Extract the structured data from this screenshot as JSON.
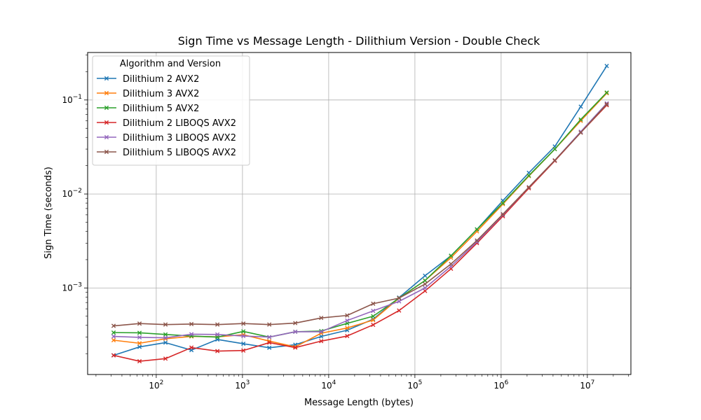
{
  "chart_data": {
    "type": "line",
    "title": "Sign Time vs Message Length - Dilithium Version - Double Check",
    "xlabel": "Message Length (bytes)",
    "ylabel": "Sign Time (seconds)",
    "xscale": "log",
    "yscale": "log",
    "xlim": [
      16,
      32000000
    ],
    "ylim": [
      0.00012,
      0.32
    ],
    "x_ticks": [
      {
        "value": 100,
        "base": "10",
        "exp": "2"
      },
      {
        "value": 1000,
        "base": "10",
        "exp": "3"
      },
      {
        "value": 10000,
        "base": "10",
        "exp": "4"
      },
      {
        "value": 100000,
        "base": "10",
        "exp": "5"
      },
      {
        "value": 1000000,
        "base": "10",
        "exp": "6"
      },
      {
        "value": 10000000,
        "base": "10",
        "exp": "7"
      }
    ],
    "y_ticks": [
      {
        "value": 0.001,
        "base": "10",
        "exp": "−3"
      },
      {
        "value": 0.01,
        "base": "10",
        "exp": "−2"
      },
      {
        "value": 0.1,
        "base": "10",
        "exp": "−1"
      }
    ],
    "grid": true,
    "marker": "x",
    "legend": {
      "title": "Algorithm and Version",
      "position": "top-left"
    },
    "x": [
      32,
      64,
      128,
      256,
      512,
      1024,
      2048,
      4096,
      8192,
      16384,
      32768,
      65536,
      131072,
      262144,
      524288,
      1048576,
      2097152,
      4194304,
      8388608,
      16777216
    ],
    "series": [
      {
        "name": "Dilithium 2 AVX2",
        "color": "#1f77b4",
        "values": [
          0.000192,
          0.000236,
          0.000262,
          0.000218,
          0.000283,
          0.000255,
          0.000231,
          0.000249,
          0.000305,
          0.000355,
          0.000465,
          0.00079,
          0.00135,
          0.0022,
          0.0042,
          0.0085,
          0.0168,
          0.032,
          0.085,
          0.23
        ]
      },
      {
        "name": "Dilithium 3 AVX2",
        "color": "#ff7f0e",
        "values": [
          0.000278,
          0.000258,
          0.000288,
          0.000305,
          0.000302,
          0.000318,
          0.000272,
          0.000236,
          0.00033,
          0.000375,
          0.000455,
          0.00078,
          0.0012,
          0.0021,
          0.004,
          0.0078,
          0.0155,
          0.03,
          0.06,
          0.118
        ]
      },
      {
        "name": "Dilithium 5 AVX2",
        "color": "#2ca02c",
        "values": [
          0.000335,
          0.000333,
          0.00032,
          0.000308,
          0.0003,
          0.000345,
          0.0003,
          0.000342,
          0.000348,
          0.00042,
          0.0005,
          0.00078,
          0.0012,
          0.0022,
          0.0042,
          0.008,
          0.0157,
          0.03,
          0.062,
          0.12
        ]
      },
      {
        "name": "Dilithium 2 LIBOQS AVX2",
        "color": "#d62728",
        "values": [
          0.000192,
          0.000166,
          0.000177,
          0.000232,
          0.000213,
          0.000216,
          0.000262,
          0.000232,
          0.000272,
          0.000308,
          0.000405,
          0.000575,
          0.00093,
          0.0016,
          0.003,
          0.0058,
          0.0115,
          0.0225,
          0.045,
          0.088
        ]
      },
      {
        "name": "Dilithium 3 LIBOQS AVX2",
        "color": "#9467bd",
        "values": [
          0.000305,
          0.000298,
          0.000295,
          0.000322,
          0.00032,
          0.000308,
          0.0003,
          0.000342,
          0.000342,
          0.00045,
          0.00057,
          0.00072,
          0.001,
          0.0017,
          0.0031,
          0.006,
          0.0118,
          0.0228,
          0.046,
          0.092
        ]
      },
      {
        "name": "Dilithium 5 LIBOQS AVX2",
        "color": "#8c564b",
        "values": [
          0.000395,
          0.000418,
          0.000408,
          0.000413,
          0.000408,
          0.000418,
          0.000408,
          0.000423,
          0.00048,
          0.00051,
          0.00068,
          0.00078,
          0.0011,
          0.0018,
          0.0032,
          0.0061,
          0.0118,
          0.0228,
          0.045,
          0.09
        ]
      }
    ]
  }
}
